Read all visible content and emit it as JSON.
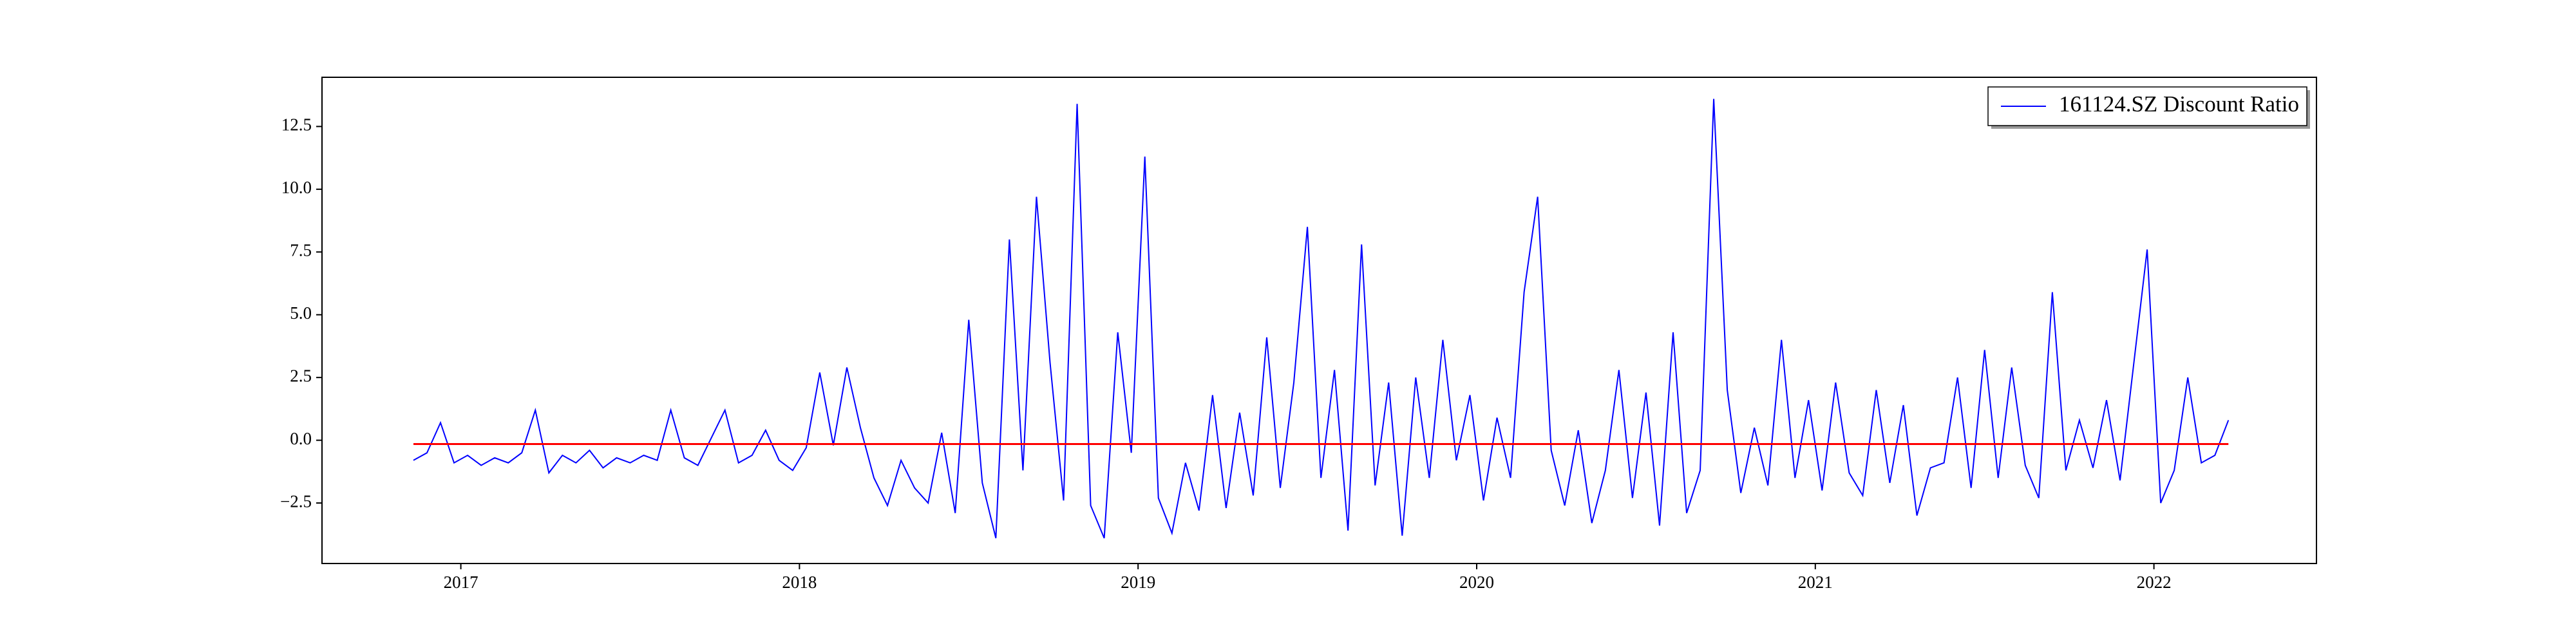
{
  "chart_data": {
    "type": "line",
    "x": [
      2016.86,
      2016.9,
      2016.94,
      2016.98,
      2017.02,
      2017.06,
      2017.1,
      2017.14,
      2017.18,
      2017.22,
      2017.26,
      2017.3,
      2017.34,
      2017.38,
      2017.42,
      2017.46,
      2017.5,
      2017.54,
      2017.58,
      2017.62,
      2017.66,
      2017.7,
      2017.74,
      2017.78,
      2017.82,
      2017.86,
      2017.9,
      2017.94,
      2017.98,
      2018.02,
      2018.06,
      2018.1,
      2018.14,
      2018.18,
      2018.22,
      2018.26,
      2018.3,
      2018.34,
      2018.38,
      2018.42,
      2018.46,
      2018.5,
      2018.54,
      2018.58,
      2018.62,
      2018.66,
      2018.7,
      2018.74,
      2018.78,
      2018.82,
      2018.86,
      2018.9,
      2018.94,
      2018.98,
      2019.02,
      2019.06,
      2019.1,
      2019.14,
      2019.18,
      2019.22,
      2019.26,
      2019.3,
      2019.34,
      2019.38,
      2019.42,
      2019.46,
      2019.5,
      2019.54,
      2019.58,
      2019.62,
      2019.66,
      2019.7,
      2019.74,
      2019.78,
      2019.82,
      2019.86,
      2019.9,
      2019.94,
      2019.98,
      2020.02,
      2020.06,
      2020.1,
      2020.14,
      2020.18,
      2020.22,
      2020.26,
      2020.3,
      2020.34,
      2020.38,
      2020.42,
      2020.46,
      2020.5,
      2020.54,
      2020.58,
      2020.62,
      2020.66,
      2020.7,
      2020.74,
      2020.78,
      2020.82,
      2020.86,
      2020.9,
      2020.94,
      2020.98,
      2021.02,
      2021.06,
      2021.1,
      2021.14,
      2021.18,
      2021.22,
      2021.26,
      2021.3,
      2021.34,
      2021.38,
      2021.42,
      2021.46,
      2021.5,
      2021.54,
      2021.58,
      2021.62,
      2021.66,
      2021.7,
      2021.74,
      2021.78,
      2021.82,
      2021.86,
      2021.9,
      2021.94,
      2021.98,
      2022.02,
      2022.06,
      2022.1,
      2022.14,
      2022.18,
      2022.22
    ],
    "series": [
      {
        "name": "161124.SZ Discount Ratio",
        "color": "#0000ff",
        "values": [
          -0.8,
          -0.5,
          0.7,
          -0.9,
          -0.6,
          -1.0,
          -0.7,
          -0.9,
          -0.5,
          1.2,
          -1.3,
          -0.6,
          -0.9,
          -0.4,
          -1.1,
          -0.7,
          -0.9,
          -0.6,
          -0.8,
          1.2,
          -0.7,
          -1.0,
          0.1,
          1.2,
          -0.9,
          -0.6,
          0.4,
          -0.8,
          -1.2,
          -0.3,
          2.7,
          -0.2,
          2.9,
          0.5,
          -1.5,
          -2.6,
          -0.8,
          -1.9,
          -2.5,
          0.3,
          -2.9,
          4.8,
          -1.7,
          -3.9,
          8.0,
          -1.2,
          9.7,
          3.1,
          -2.4,
          13.4,
          -2.6,
          -3.9,
          4.3,
          -0.5,
          11.3,
          -2.3,
          -3.7,
          -0.9,
          -2.8,
          1.8,
          -2.7,
          1.1,
          -2.2,
          4.1,
          -1.9,
          2.3,
          8.5,
          -1.5,
          2.8,
          -3.6,
          7.8,
          -1.8,
          2.3,
          -3.8,
          2.5,
          -1.5,
          4.0,
          -0.8,
          1.8,
          -2.4,
          0.9,
          -1.5,
          5.9,
          9.7,
          -0.4,
          -2.6,
          0.4,
          -3.3,
          -1.2,
          2.8,
          -2.3,
          1.9,
          -3.4,
          4.3,
          -2.9,
          -1.2,
          13.6,
          2.0,
          -2.1,
          0.5,
          -1.8,
          4.0,
          -1.5,
          1.6,
          -2.0,
          2.3,
          -1.3,
          -2.2,
          2.0,
          -1.7,
          1.4,
          -3.0,
          -1.1,
          -0.9,
          2.5,
          -1.9,
          3.6,
          -1.5,
          2.9,
          -1.0,
          -2.3,
          5.9,
          -1.2,
          0.8,
          -1.1,
          1.6,
          -1.6,
          3.0,
          7.6,
          -2.5,
          -1.2,
          2.5,
          -0.9,
          -0.6,
          0.8
        ]
      }
    ],
    "reference_line": {
      "color": "#ff0000",
      "x": [
        2016.86,
        2022.22
      ],
      "values": [
        -0.15,
        -0.15
      ]
    },
    "xlim": [
      2016.59,
      2022.48
    ],
    "ylim": [
      -4.91,
      14.46
    ],
    "xticks": [
      2017,
      2018,
      2019,
      2020,
      2021,
      2022
    ],
    "yticks": [
      {
        "value": -2.5,
        "label": "−2.5"
      },
      {
        "value": 0,
        "label": "0.0"
      },
      2.5,
      {
        "value": 5,
        "label": "5.0"
      },
      7.5,
      {
        "value": 10,
        "label": "10.0"
      },
      12.5
    ],
    "legend": "upper right"
  }
}
